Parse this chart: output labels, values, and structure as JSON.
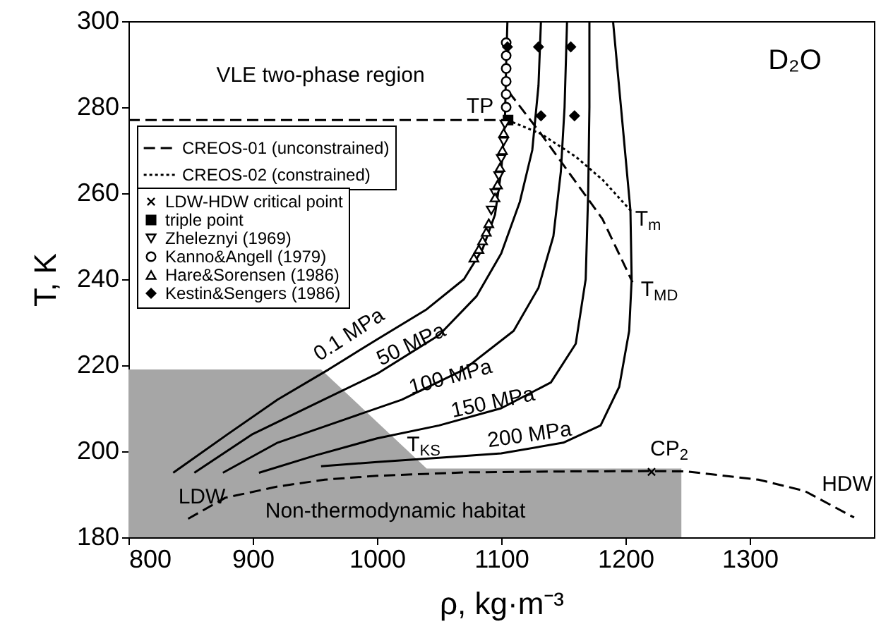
{
  "chart_data": {
    "type": "line",
    "xlabel": "ρ, kg·m⁻³",
    "ylabel": "T, K",
    "xlim": [
      800,
      1400
    ],
    "ylim": [
      180,
      300
    ],
    "xticks": [
      800,
      900,
      1000,
      1100,
      1200,
      1300
    ],
    "yticks": [
      180,
      200,
      220,
      240,
      260,
      280,
      300
    ],
    "legend": "top left",
    "series": [
      {
        "type": "area",
        "color": "#a6a6a6",
        "x": [
          800,
          955,
          1040,
          1245,
          1245
        ],
        "values": [
          219,
          219,
          196,
          196,
          180
        ]
      },
      {
        "name": "CREOS-01 (unconstrained)",
        "type": "line",
        "color": "#000000",
        "line_style": "dashed",
        "x": [
          848,
          878,
          920,
          958,
          1000,
          1072,
          1150,
          1220,
          1250,
          1307,
          1344,
          1384
        ],
        "values": [
          184.3,
          189.2,
          191.8,
          193.4,
          194.3,
          195.1,
          195.3,
          195.4,
          195.3,
          193.4,
          190.8,
          184.6
        ]
      },
      {
        "name": "CREOS-02 (constrained)",
        "type": "line",
        "color": "#000000",
        "line_style": "dotted",
        "x": [
          1105,
          1132,
          1160,
          1182,
          1205
        ],
        "values": [
          277,
          273.8,
          268.5,
          263,
          255.7
        ]
      },
      {
        "color": "#000000",
        "line_style": "solid",
        "x": [
          836,
          880,
          920,
          961,
          1000,
          1040,
          1070,
          1085,
          1095,
          1100,
          1103,
          1104,
          1105
        ],
        "values": [
          195,
          204,
          212,
          219,
          226,
          233,
          240,
          247,
          255,
          265,
          277,
          290,
          300
        ]
      },
      {
        "color": "#000000",
        "line_style": "solid",
        "x": [
          853,
          900,
          950,
          1000,
          1050,
          1080,
          1100,
          1115,
          1125,
          1130,
          1132
        ],
        "values": [
          195,
          204,
          211,
          218,
          227,
          236,
          246,
          258,
          270,
          285,
          300
        ]
      },
      {
        "color": "#000000",
        "line_style": "solid",
        "x": [
          876,
          920,
          970,
          1020,
          1070,
          1110,
          1130,
          1142,
          1148,
          1151,
          1153
        ],
        "values": [
          195,
          202,
          207,
          212,
          219,
          228,
          238,
          250,
          265,
          280,
          300
        ]
      },
      {
        "color": "#000000",
        "line_style": "solid",
        "x": [
          905,
          950,
          1000,
          1050,
          1100,
          1140,
          1160,
          1168,
          1170,
          1171,
          1171
        ],
        "values": [
          195,
          199,
          203,
          206,
          210,
          216,
          225,
          240,
          260,
          280,
          300
        ]
      },
      {
        "color": "#000000",
        "line_style": "solid",
        "x": [
          955,
          1000,
          1050,
          1100,
          1150,
          1180,
          1195,
          1203,
          1205,
          1204,
          1198,
          1190
        ],
        "values": [
          196.5,
          197.5,
          198.5,
          199.5,
          202,
          206,
          215,
          228,
          240,
          256,
          275,
          300
        ]
      },
      {
        "type": "line",
        "color": "#000000",
        "line_style": "dashed",
        "x": [
          1106,
          1132,
          1159,
          1181.5,
          1205.7
        ],
        "values": [
          283.6,
          273.8,
          263,
          254,
          239.3
        ]
      },
      {
        "type": "line",
        "color": "#000000",
        "line_style": "dashed",
        "x": [
          800,
          1105
        ],
        "values": [
          277,
          277
        ]
      },
      {
        "name": "LDW-HDW critical point",
        "type": "scatter",
        "color": "#000000",
        "marker": "cross",
        "x": [
          1221
        ],
        "values": [
          195.2
        ]
      },
      {
        "name": "triple point",
        "type": "scatter",
        "color": "#000000",
        "marker": "square",
        "x": [
          1105.5
        ],
        "values": [
          277
        ]
      },
      {
        "name": "Zheleznyi (1969)",
        "type": "scatter",
        "color": "#000000",
        "marker": "triangle-down",
        "x": [
          1092,
          1095,
          1098,
          1100,
          1102,
          1103
        ],
        "values": [
          256,
          260,
          264,
          268,
          272,
          276
        ]
      },
      {
        "name": "Kanno&Angell (1979)",
        "type": "scatter",
        "color": "#000000",
        "marker": "circle",
        "x": [
          1104,
          1104,
          1104,
          1104,
          1104,
          1104
        ],
        "values": [
          280,
          283,
          286,
          289,
          292,
          295
        ]
      },
      {
        "name": "Hare&Sorensen (1986)",
        "type": "scatter",
        "color": "#000000",
        "marker": "triangle",
        "x": [
          1078,
          1082,
          1085,
          1088,
          1090,
          1095,
          1097,
          1099,
          1101,
          1102
        ],
        "values": [
          245,
          247,
          249,
          251,
          253,
          259,
          262,
          266,
          270,
          274
        ]
      },
      {
        "name": "Kestin&Sengers (1986)",
        "type": "scatter",
        "color": "#000000",
        "marker": "diamond",
        "x": [
          1105,
          1130,
          1156,
          1132,
          1159
        ],
        "values": [
          294,
          294,
          294,
          278,
          278
        ]
      }
    ],
    "annotations": [
      "VLE two-phase region",
      "D₂O",
      "TP",
      "T$_{m}$",
      "T$_{MD}$",
      "T$_{KS}$",
      "CP$_{2}$",
      "LDW",
      "HDW",
      "Non-thermodynamic habitat",
      "0.1 MPa",
      "50 MPa",
      "100 MPa",
      "150 MPa",
      "200 MPa"
    ]
  }
}
